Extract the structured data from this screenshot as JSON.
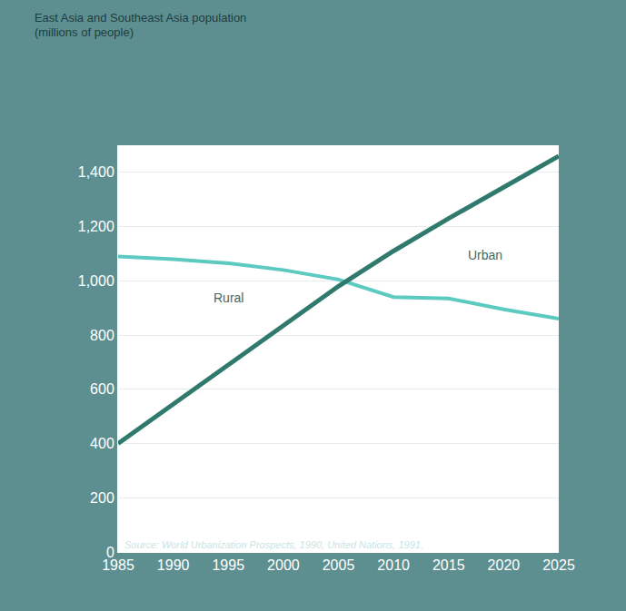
{
  "chart_data": {
    "type": "line",
    "title": "East Asia and Southeast Asia population",
    "subtitle": "(millions of people)",
    "x": [
      1985,
      1990,
      1995,
      2000,
      2005,
      2010,
      2015,
      2020,
      2025
    ],
    "series": [
      {
        "name": "Rural",
        "color": "#5ccac0",
        "values": [
          1090,
          1080,
          1065,
          1040,
          1005,
          940,
          935,
          895,
          860
        ]
      },
      {
        "name": "Urban",
        "color": "#2f7a6c",
        "values": [
          400,
          545,
          690,
          840,
          980,
          1110,
          1230,
          1345,
          1460
        ]
      }
    ],
    "xlim": [
      1985,
      2025
    ],
    "xticks": [
      1985,
      1990,
      1995,
      2000,
      2005,
      2010,
      2015,
      2020,
      2025
    ],
    "ylim": [
      0,
      1500
    ],
    "yticks": [
      0,
      200,
      400,
      600,
      800,
      {
        "value": 1000,
        "label": "1,000"
      },
      {
        "value": 1200,
        "label": "1,200"
      },
      {
        "value": 1400,
        "label": "1,400"
      }
    ],
    "grid": true,
    "annotations": [
      "Source: World Urbanization Prospects, 1990, United Nations, 1991."
    ]
  }
}
